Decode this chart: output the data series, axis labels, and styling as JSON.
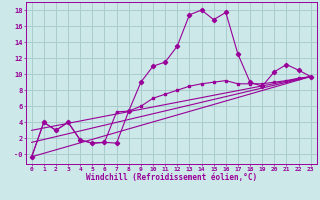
{
  "xlabel": "Windchill (Refroidissement éolien,°C)",
  "background_color": "#cce8e8",
  "grid_color": "#aacccc",
  "line_color": "#990099",
  "xlim": [
    -0.5,
    23.5
  ],
  "ylim": [
    -1.2,
    19
  ],
  "xticks": [
    0,
    1,
    2,
    3,
    4,
    5,
    6,
    7,
    8,
    9,
    10,
    11,
    12,
    13,
    14,
    15,
    16,
    17,
    18,
    19,
    20,
    21,
    22,
    23
  ],
  "yticks": [
    0,
    2,
    4,
    6,
    8,
    10,
    12,
    14,
    16,
    18
  ],
  "ytick_labels": [
    "-0",
    "2",
    "4",
    "6",
    "8",
    "10",
    "12",
    "14",
    "16",
    "18"
  ],
  "series1_x": [
    0,
    1,
    2,
    3,
    4,
    5,
    6,
    7,
    8,
    9,
    10,
    11,
    12,
    13,
    14,
    15,
    16,
    17,
    18,
    19,
    20,
    21,
    22,
    23
  ],
  "series1_y": [
    -0.3,
    4.0,
    3.0,
    4.0,
    1.8,
    1.4,
    1.5,
    1.4,
    5.4,
    9.0,
    11.0,
    11.5,
    13.5,
    17.4,
    18.0,
    16.8,
    17.7,
    12.5,
    9.0,
    8.5,
    10.3,
    11.2,
    10.5,
    9.7
  ],
  "series2_x": [
    0,
    1,
    2,
    3,
    4,
    5,
    6,
    7,
    8,
    9,
    10,
    11,
    12,
    13,
    14,
    15,
    16,
    17,
    18,
    19,
    20,
    21,
    22,
    23
  ],
  "series2_y": [
    -0.3,
    4.0,
    3.0,
    4.0,
    1.8,
    1.4,
    1.5,
    5.3,
    5.4,
    6.0,
    7.0,
    7.5,
    8.0,
    8.5,
    8.8,
    9.0,
    9.2,
    8.8,
    8.8,
    8.8,
    9.0,
    9.2,
    9.5,
    9.7
  ],
  "series3_x": [
    0,
    23
  ],
  "series3_y": [
    -0.3,
    9.7
  ],
  "series4_x": [
    0,
    23
  ],
  "series4_y": [
    1.5,
    9.7
  ],
  "series5_x": [
    0,
    23
  ],
  "series5_y": [
    3.0,
    9.7
  ]
}
